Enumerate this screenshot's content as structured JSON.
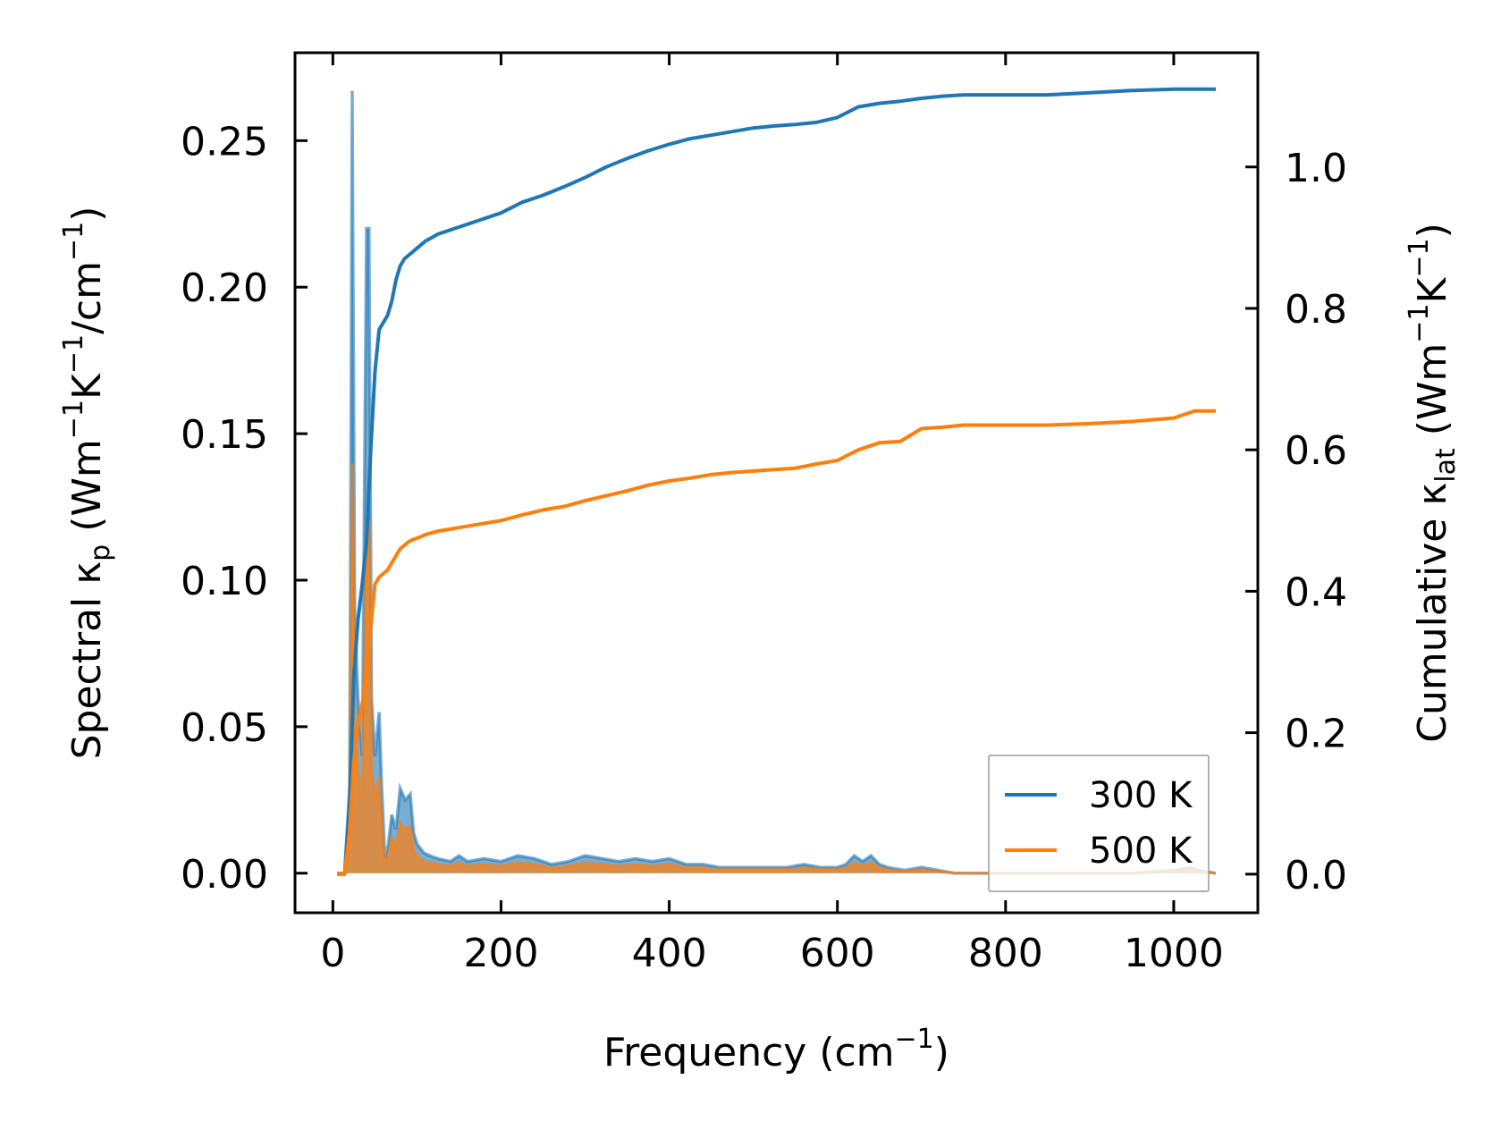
{
  "chart_data": {
    "type": "line",
    "x_axis": {
      "label": "Frequency (cm",
      "label_sup": "−1",
      "label_end": ")",
      "lim": [
        -45,
        1100
      ],
      "ticks": [
        0,
        200,
        400,
        600,
        800,
        1000
      ],
      "tick_labels": [
        "0",
        "200",
        "400",
        "600",
        "800",
        "1000"
      ]
    },
    "y_left": {
      "label_parts": [
        {
          "t": "Spectral κ"
        },
        {
          "t": "p",
          "sub": true
        },
        {
          "t": " (Wm"
        },
        {
          "t": "−1",
          "sup": true
        },
        {
          "t": "K"
        },
        {
          "t": "−1",
          "sup": true
        },
        {
          "t": "/cm"
        },
        {
          "t": "−1",
          "sup": true
        },
        {
          "t": ")"
        }
      ],
      "lim": [
        -0.0135,
        0.28
      ],
      "ticks": [
        0.0,
        0.05,
        0.1,
        0.15,
        0.2,
        0.25
      ],
      "tick_labels": [
        "0.00",
        "0.05",
        "0.10",
        "0.15",
        "0.20",
        "0.25"
      ]
    },
    "y_right": {
      "label_parts": [
        {
          "t": "Cumulative κ"
        },
        {
          "t": "lat",
          "sub": true
        },
        {
          "t": " (Wm"
        },
        {
          "t": "−1",
          "sup": true
        },
        {
          "t": "K"
        },
        {
          "t": "−1",
          "sup": true
        },
        {
          "t": ")"
        }
      ],
      "lim": [
        -0.0546,
        1.1615
      ],
      "ticks": [
        0.0,
        0.2,
        0.4,
        0.6,
        0.8,
        1.0
      ],
      "tick_labels": [
        "0.0",
        "0.2",
        "0.4",
        "0.6",
        "0.8",
        "1.0"
      ]
    },
    "legend": {
      "position": "bottom-right",
      "entries": [
        "300 K",
        "500 K"
      ]
    },
    "series": [
      {
        "name": "300 K",
        "color": "#1f77b4",
        "spectral": {
          "x": [
            5,
            10,
            14,
            20,
            23,
            26,
            30,
            35,
            40,
            43,
            46,
            50,
            55,
            58,
            62,
            66,
            70,
            75,
            80,
            86,
            92,
            96,
            100,
            108,
            115,
            125,
            140,
            150,
            160,
            180,
            200,
            220,
            240,
            260,
            280,
            300,
            320,
            340,
            360,
            380,
            400,
            420,
            440,
            460,
            480,
            500,
            540,
            560,
            580,
            600,
            610,
            620,
            630,
            640,
            650,
            660,
            680,
            700,
            720,
            740,
            760,
            800,
            850,
            900,
            950,
            1000,
            1020,
            1030,
            1050
          ],
          "y": [
            0,
            0,
            0,
            0.03,
            0.267,
            0.09,
            0.06,
            0.04,
            0.22,
            0.22,
            0.06,
            0.04,
            0.055,
            0.03,
            0.005,
            0.01,
            0.02,
            0.015,
            0.029,
            0.025,
            0.027,
            0.014,
            0.01,
            0.007,
            0.006,
            0.005,
            0.004,
            0.006,
            0.004,
            0.005,
            0.004,
            0.006,
            0.005,
            0.003,
            0.004,
            0.006,
            0.005,
            0.004,
            0.005,
            0.004,
            0.005,
            0.003,
            0.003,
            0.002,
            0.002,
            0.002,
            0.002,
            0.003,
            0.002,
            0.002,
            0.003,
            0.006,
            0.004,
            0.006,
            0.003,
            0.002,
            0.001,
            0.002,
            0.001,
            0,
            0,
            0,
            0,
            0,
            0,
            0.001,
            0.002,
            0.001,
            0
          ]
        },
        "cumulative": {
          "x": [
            5,
            10,
            14,
            20,
            25,
            30,
            35,
            40,
            45,
            50,
            55,
            60,
            65,
            70,
            75,
            80,
            85,
            90,
            95,
            100,
            110,
            125,
            150,
            175,
            200,
            225,
            250,
            275,
            300,
            325,
            350,
            375,
            400,
            425,
            450,
            475,
            500,
            525,
            550,
            575,
            600,
            625,
            650,
            675,
            700,
            725,
            750,
            800,
            850,
            900,
            950,
            1000,
            1025,
            1050
          ],
          "y": [
            0,
            0,
            0,
            0.1,
            0.28,
            0.36,
            0.41,
            0.47,
            0.6,
            0.71,
            0.77,
            0.78,
            0.79,
            0.81,
            0.84,
            0.86,
            0.87,
            0.875,
            0.88,
            0.885,
            0.895,
            0.905,
            0.915,
            0.925,
            0.935,
            0.95,
            0.96,
            0.972,
            0.985,
            1.0,
            1.012,
            1.023,
            1.032,
            1.04,
            1.045,
            1.05,
            1.055,
            1.058,
            1.06,
            1.063,
            1.07,
            1.085,
            1.09,
            1.093,
            1.097,
            1.1,
            1.102,
            1.102,
            1.102,
            1.105,
            1.108,
            1.11,
            1.11,
            1.11
          ]
        }
      },
      {
        "name": "500 K",
        "color": "#ff7f0e",
        "spectral": {
          "x": [
            5,
            10,
            14,
            20,
            23,
            26,
            30,
            35,
            40,
            43,
            46,
            50,
            55,
            58,
            62,
            66,
            70,
            75,
            80,
            86,
            92,
            96,
            100,
            108,
            115,
            125,
            140,
            150,
            160,
            180,
            200,
            220,
            240,
            260,
            280,
            300,
            320,
            340,
            360,
            380,
            400,
            420,
            440,
            460,
            480,
            500,
            540,
            560,
            580,
            600,
            610,
            620,
            630,
            640,
            650,
            660,
            680,
            700,
            720,
            740,
            760,
            800,
            850,
            900,
            950,
            1000,
            1020,
            1030,
            1050
          ],
          "y": [
            0,
            0,
            0,
            0.02,
            0.14,
            0.05,
            0.035,
            0.025,
            0.12,
            0.12,
            0.035,
            0.025,
            0.033,
            0.018,
            0.003,
            0.006,
            0.012,
            0.009,
            0.017,
            0.015,
            0.016,
            0.008,
            0.006,
            0.004,
            0.0036,
            0.003,
            0.0024,
            0.0036,
            0.0024,
            0.003,
            0.0024,
            0.0036,
            0.003,
            0.0018,
            0.0024,
            0.0036,
            0.003,
            0.0024,
            0.003,
            0.0024,
            0.003,
            0.0018,
            0.0018,
            0.0012,
            0.0012,
            0.0012,
            0.0012,
            0.0018,
            0.0012,
            0.0012,
            0.0018,
            0.0036,
            0.0024,
            0.0036,
            0.0018,
            0.0012,
            0.0006,
            0.0012,
            0.0006,
            0,
            0,
            0,
            0,
            0,
            0,
            0.0006,
            0.0012,
            0.0006,
            0
          ]
        },
        "cumulative": {
          "x": [
            5,
            10,
            14,
            20,
            25,
            30,
            35,
            40,
            45,
            50,
            55,
            60,
            65,
            70,
            75,
            80,
            85,
            90,
            95,
            100,
            110,
            125,
            150,
            175,
            200,
            225,
            250,
            275,
            300,
            325,
            350,
            375,
            400,
            425,
            450,
            475,
            500,
            525,
            550,
            575,
            600,
            625,
            650,
            675,
            700,
            725,
            750,
            800,
            850,
            900,
            950,
            1000,
            1025,
            1050
          ],
          "y": [
            0,
            0,
            0,
            0.06,
            0.16,
            0.21,
            0.24,
            0.28,
            0.35,
            0.41,
            0.42,
            0.425,
            0.43,
            0.44,
            0.45,
            0.46,
            0.465,
            0.47,
            0.473,
            0.475,
            0.48,
            0.485,
            0.49,
            0.495,
            0.5,
            0.508,
            0.515,
            0.52,
            0.528,
            0.535,
            0.542,
            0.55,
            0.556,
            0.56,
            0.565,
            0.568,
            0.57,
            0.572,
            0.574,
            0.58,
            0.585,
            0.6,
            0.61,
            0.612,
            0.63,
            0.632,
            0.635,
            0.635,
            0.635,
            0.637,
            0.64,
            0.645,
            0.655,
            0.655
          ]
        }
      }
    ]
  }
}
